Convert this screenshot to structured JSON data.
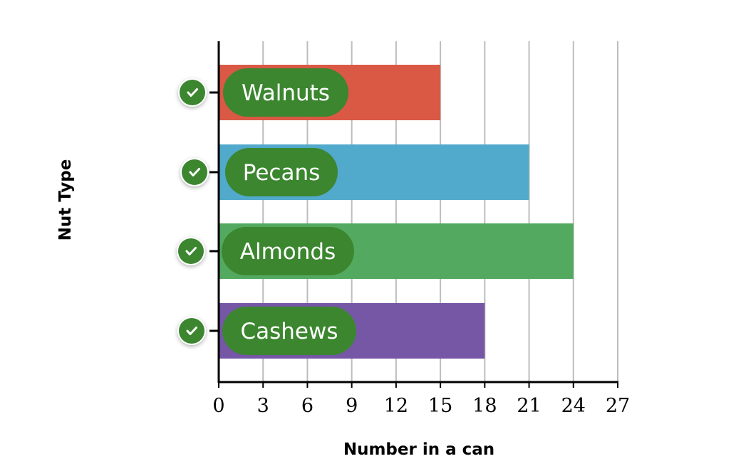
{
  "chart_data": {
    "type": "bar",
    "orientation": "horizontal",
    "xlabel": "Number in a can",
    "ylabel": "Nut Type",
    "xlim": [
      0,
      27
    ],
    "xticks": [
      0,
      3,
      6,
      9,
      12,
      15,
      18,
      21,
      24,
      27
    ],
    "grid": "vertical",
    "categories": [
      "Walnuts",
      "Pecans",
      "Almonds",
      "Cashews"
    ],
    "values": [
      15,
      21,
      24,
      18
    ],
    "colors": [
      "#d95945",
      "#51a9cb",
      "#54a960",
      "#7557a6"
    ],
    "label_pill_color": "#3b862f",
    "check_icon": "check-circle-icon",
    "category_checked": [
      true,
      true,
      true,
      true
    ]
  }
}
